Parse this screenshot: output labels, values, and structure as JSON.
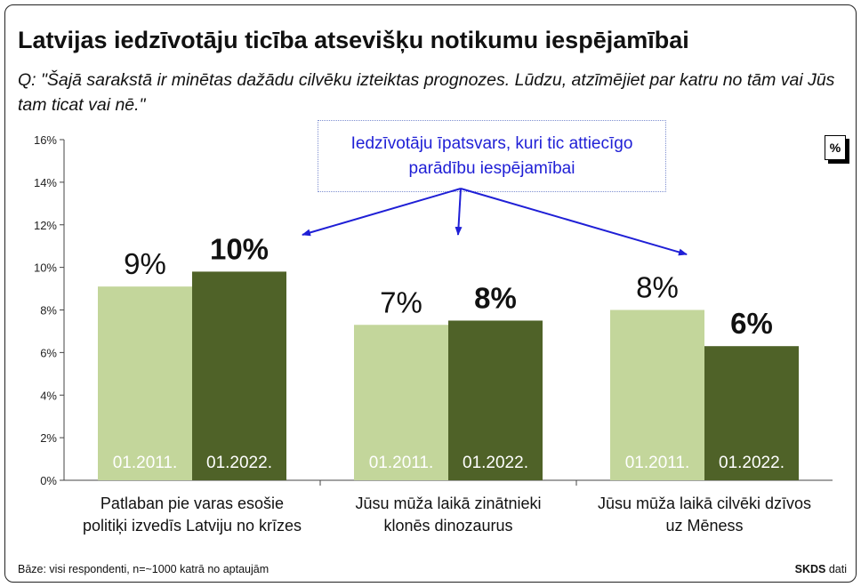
{
  "title": "Latvijas iedzīvotāju ticība atsevišķu notikumu iespējamībai",
  "subtitle": "Q: \"Šajā sarakstā ir minētas dažādu cilvēku izteiktas prognozes. Lūdzu, atzīmējiet par katru no tām vai Jūs tam ticat vai nē.\"",
  "callout": "Iedzīvotāju īpatsvars, kuri tic attiecīgo parādību iespējamībai",
  "unit_badge": "%",
  "footer": {
    "base": "Bāze: visi respondenti, n=~1000 katrā no aptaujām",
    "source_bold": "SKDS",
    "source_rest": "dati"
  },
  "colors": {
    "light": "#c3d69b",
    "dark": "#4f6228",
    "arrow": "#1f1fd6"
  },
  "chart_data": {
    "type": "bar",
    "title": "Latvijas iedzīvotāju ticība atsevišķu notikumu iespējamībai",
    "ylim": [
      0,
      16
    ],
    "y_ticks": [
      0,
      2,
      4,
      6,
      8,
      10,
      12,
      14,
      16
    ],
    "y_tick_labels": [
      "0%",
      "2%",
      "4%",
      "6%",
      "8%",
      "10%",
      "12%",
      "14%",
      "16%"
    ],
    "grid": false,
    "legend": "none",
    "categories": [
      {
        "line1": "Patlaban pie varas esošie",
        "line2": "politiķi izvedīs Latviju no krīzes"
      },
      {
        "line1": "Jūsu mūža laikā zinātnieki",
        "line2": "klonēs dinozaurus"
      },
      {
        "line1": "Jūsu mūža laikā cilvēki dzīvos",
        "line2": "uz Mēness"
      }
    ],
    "series": [
      {
        "label": "01.2011.",
        "values": [
          9.1,
          7.3,
          8.0
        ],
        "value_labels": [
          "9%",
          "7%",
          "8%"
        ]
      },
      {
        "label": "01.2022.",
        "values": [
          9.8,
          7.5,
          6.3
        ],
        "value_labels": [
          "10%",
          "8%",
          "6%"
        ]
      }
    ]
  }
}
